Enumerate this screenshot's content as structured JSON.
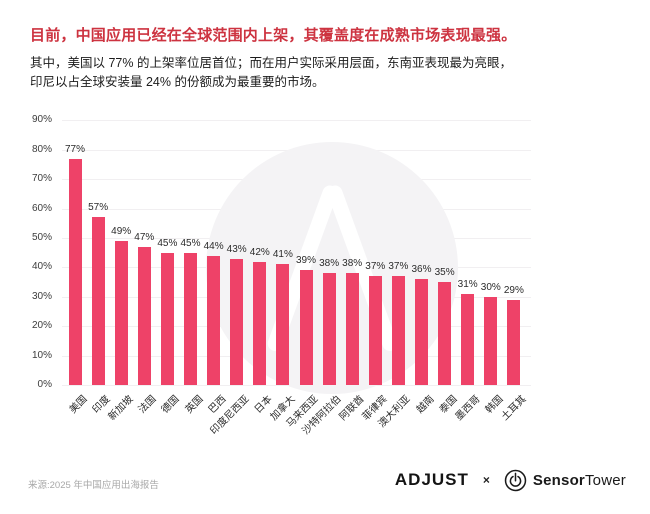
{
  "header": {
    "title": "目前，中国应用已经在全球范围内上架，其覆盖度在成熟市场表现最强。",
    "title_color": "#cd3340",
    "subtitle_line1": "其中，美国以 77% 的上架率位居首位；而在用户实际采用层面，东南亚表现最为亮眼，",
    "subtitle_line2": "印尼以占全球安装量 24% 的份额成为最重要的市场。"
  },
  "chart_data": {
    "type": "bar",
    "title": "",
    "xlabel": "",
    "ylabel": "",
    "categories": [
      "美国",
      "印度",
      "新加坡",
      "法国",
      "德国",
      "英国",
      "巴西",
      "印度尼西亚",
      "日本",
      "加拿大",
      "马来西亚",
      "沙特阿拉伯",
      "阿联酋",
      "菲律宾",
      "澳大利亚",
      "越南",
      "泰国",
      "墨西哥",
      "韩国",
      "土耳其"
    ],
    "values": [
      77,
      57,
      49,
      47,
      45,
      45,
      44,
      43,
      42,
      41,
      39,
      38,
      38,
      37,
      37,
      36,
      35,
      31,
      30,
      29
    ],
    "value_suffix": "%",
    "ylim": [
      0,
      90
    ],
    "y_tick_interval": 10,
    "y_ticks": [
      "0%",
      "10%",
      "20%",
      "30%",
      "40%",
      "50%",
      "60%",
      "70%",
      "80%",
      "90%"
    ],
    "grid": true,
    "legend": "none",
    "bar_color": "#ee4268",
    "gridline_color": "#f1eff1",
    "tick_label_color": "#3c3c3c",
    "value_label_color": "#2b2b2b",
    "category_label_color": "#2b2b2b"
  },
  "watermark": {
    "circle_color": "#f4f3f5",
    "mark_color": "#ffffff"
  },
  "footer": {
    "source": "来源:2025 年中国应用出海报告",
    "adjust_logo": "ADJUST",
    "separator": "×",
    "sensor_bold": "Sensor",
    "sensor_regular": "Tower"
  }
}
